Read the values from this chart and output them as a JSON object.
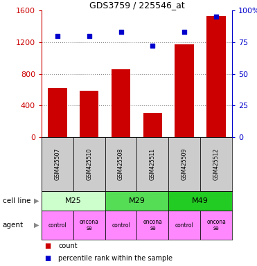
{
  "title": "GDS3759 / 225546_at",
  "samples": [
    "GSM425507",
    "GSM425510",
    "GSM425508",
    "GSM425511",
    "GSM425509",
    "GSM425512"
  ],
  "counts": [
    620,
    590,
    860,
    310,
    1175,
    1530
  ],
  "percentile_ranks": [
    80,
    80,
    83,
    72,
    83,
    95
  ],
  "ylim_left": [
    0,
    1600
  ],
  "ylim_right": [
    0,
    100
  ],
  "yticks_left": [
    0,
    400,
    800,
    1200,
    1600
  ],
  "yticks_right": [
    0,
    25,
    50,
    75,
    100
  ],
  "yticklabels_right": [
    "0",
    "25",
    "50",
    "75",
    "100%"
  ],
  "bar_color": "#cc0000",
  "dot_color": "#0000cc",
  "cell_lines": [
    {
      "label": "M25",
      "span": [
        0,
        2
      ],
      "color": "#ccffcc"
    },
    {
      "label": "M29",
      "span": [
        2,
        4
      ],
      "color": "#55dd55"
    },
    {
      "label": "M49",
      "span": [
        4,
        6
      ],
      "color": "#22cc22"
    }
  ],
  "agents": [
    {
      "label": "control",
      "span": [
        0,
        1
      ],
      "color": "#ff88ff"
    },
    {
      "label": "oncona\nse",
      "span": [
        1,
        2
      ],
      "color": "#ff88ff"
    },
    {
      "label": "control",
      "span": [
        2,
        3
      ],
      "color": "#ff88ff"
    },
    {
      "label": "oncona\nse",
      "span": [
        3,
        4
      ],
      "color": "#ff88ff"
    },
    {
      "label": "control",
      "span": [
        4,
        5
      ],
      "color": "#ff88ff"
    },
    {
      "label": "oncona\nse",
      "span": [
        5,
        6
      ],
      "color": "#ff88ff"
    }
  ],
  "sample_bg_color": "#cccccc",
  "left_label_color": "#cc0000",
  "right_label_color": "#0000cc",
  "grid_color": "#888888",
  "row_label_cell_line": "cell line",
  "row_label_agent": "agent",
  "legend_count_label": "count",
  "legend_pct_label": "percentile rank within the sample",
  "figsize": [
    3.71,
    3.84
  ],
  "dpi": 100
}
